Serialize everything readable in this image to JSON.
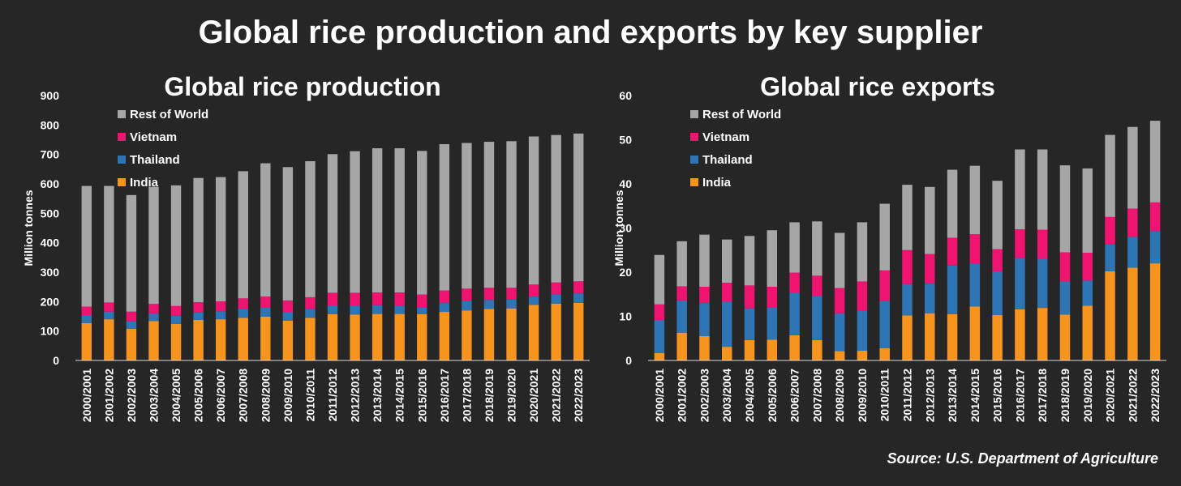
{
  "title": "Global rice production and exports by key supplier",
  "source": "Source: U.S. Department of Agriculture",
  "colors": {
    "background": "#262626",
    "India": "#f7941d",
    "Thailand": "#2e75b6",
    "Vietnam": "#ee1470",
    "Rest of World": "#a6a6a6"
  },
  "chart_data": [
    {
      "type": "bar",
      "stacked": true,
      "title": "Global rice production",
      "ylabel": "Million tonnes",
      "ylim": [
        0,
        900
      ],
      "yticks": [
        0,
        100,
        200,
        300,
        400,
        500,
        600,
        700,
        800,
        900
      ],
      "legend_position": "top-left",
      "legend_order": [
        "Rest of World",
        "Vietnam",
        "Thailand",
        "India"
      ],
      "categories": [
        "2000/2001",
        "2001/2002",
        "2002/2003",
        "2003/2004",
        "2004/2005",
        "2005/2006",
        "2006/2007",
        "2007/2008",
        "2008/2009",
        "2009/2010",
        "2010/2011",
        "2011/2012",
        "2012/2013",
        "2013/2014",
        "2014/2015",
        "2015/2016",
        "2016/2017",
        "2017/2018",
        "2018/2019",
        "2019/2020",
        "2020/2021",
        "2021/2022",
        "2022/2023"
      ],
      "series": [
        {
          "name": "India",
          "values": [
            127,
            140,
            108,
            134,
            124,
            138,
            140,
            145,
            149,
            135,
            145,
            157,
            156,
            158,
            158,
            157,
            165,
            170,
            175,
            177,
            189,
            193,
            196
          ]
        },
        {
          "name": "Thailand",
          "values": [
            27,
            26,
            25,
            26,
            28,
            25,
            27,
            30,
            30,
            30,
            30,
            30,
            31,
            30,
            28,
            24,
            30,
            31,
            31,
            30,
            28,
            32,
            32
          ]
        },
        {
          "name": "Vietnam",
          "values": [
            29,
            31,
            33,
            32,
            33,
            35,
            34,
            36,
            38,
            39,
            40,
            43,
            43,
            43,
            45,
            43,
            43,
            43,
            41,
            40,
            41,
            40,
            41
          ]
        },
        {
          "name": "Rest of World",
          "values": [
            410,
            396,
            396,
            398,
            410,
            422,
            422,
            432,
            453,
            453,
            462,
            471,
            481,
            490,
            490,
            488,
            497,
            495,
            496,
            498,
            503,
            501,
            502
          ]
        }
      ]
    },
    {
      "type": "bar",
      "stacked": true,
      "title": "Global rice exports",
      "ylabel": "Million tonnes",
      "ylim": [
        0,
        60
      ],
      "yticks": [
        0,
        10,
        20,
        30,
        40,
        50,
        60
      ],
      "legend_position": "top-left",
      "legend_order": [
        "Rest of World",
        "Vietnam",
        "Thailand",
        "India"
      ],
      "categories": [
        "2000/2001",
        "2001/2002",
        "2002/2003",
        "2003/2004",
        "2004/2005",
        "2005/2006",
        "2006/2007",
        "2007/2008",
        "2008/2009",
        "2009/2010",
        "2010/2011",
        "2011/2012",
        "2012/2013",
        "2013/2014",
        "2014/2015",
        "2015/2016",
        "2016/2017",
        "2017/2018",
        "2018/2019",
        "2019/2020",
        "2020/2021",
        "2021/2022",
        "2022/2023"
      ],
      "series": [
        {
          "name": "India",
          "values": [
            1.7,
            6.3,
            5.5,
            3.1,
            4.6,
            4.7,
            5.7,
            4.6,
            2.1,
            2.2,
            2.8,
            10.2,
            10.7,
            10.5,
            12.2,
            10.3,
            11.6,
            11.9,
            10.4,
            12.4,
            20.2,
            21.0,
            22.0
          ]
        },
        {
          "name": "Thailand",
          "values": [
            7.5,
            7.3,
            7.5,
            10.2,
            7.2,
            7.3,
            9.7,
            10.0,
            8.6,
            9.0,
            10.6,
            7.1,
            6.7,
            11.0,
            9.8,
            9.9,
            11.6,
            11.2,
            7.5,
            5.7,
            6.1,
            7.0,
            7.3
          ]
        },
        {
          "name": "Vietnam",
          "values": [
            3.5,
            3.2,
            3.7,
            4.3,
            5.2,
            4.7,
            4.5,
            4.6,
            5.7,
            6.7,
            7.0,
            7.7,
            6.7,
            6.3,
            6.6,
            5.0,
            6.5,
            6.5,
            6.6,
            6.3,
            6.2,
            6.4,
            6.5
          ]
        },
        {
          "name": "Rest of World",
          "values": [
            11.2,
            10.2,
            11.8,
            9.8,
            11.2,
            12.8,
            11.4,
            12.3,
            12.5,
            13.4,
            15.1,
            14.8,
            15.2,
            15.4,
            15.5,
            15.5,
            18.1,
            18.2,
            19.7,
            19.1,
            18.6,
            18.5,
            18.5
          ]
        }
      ]
    }
  ]
}
